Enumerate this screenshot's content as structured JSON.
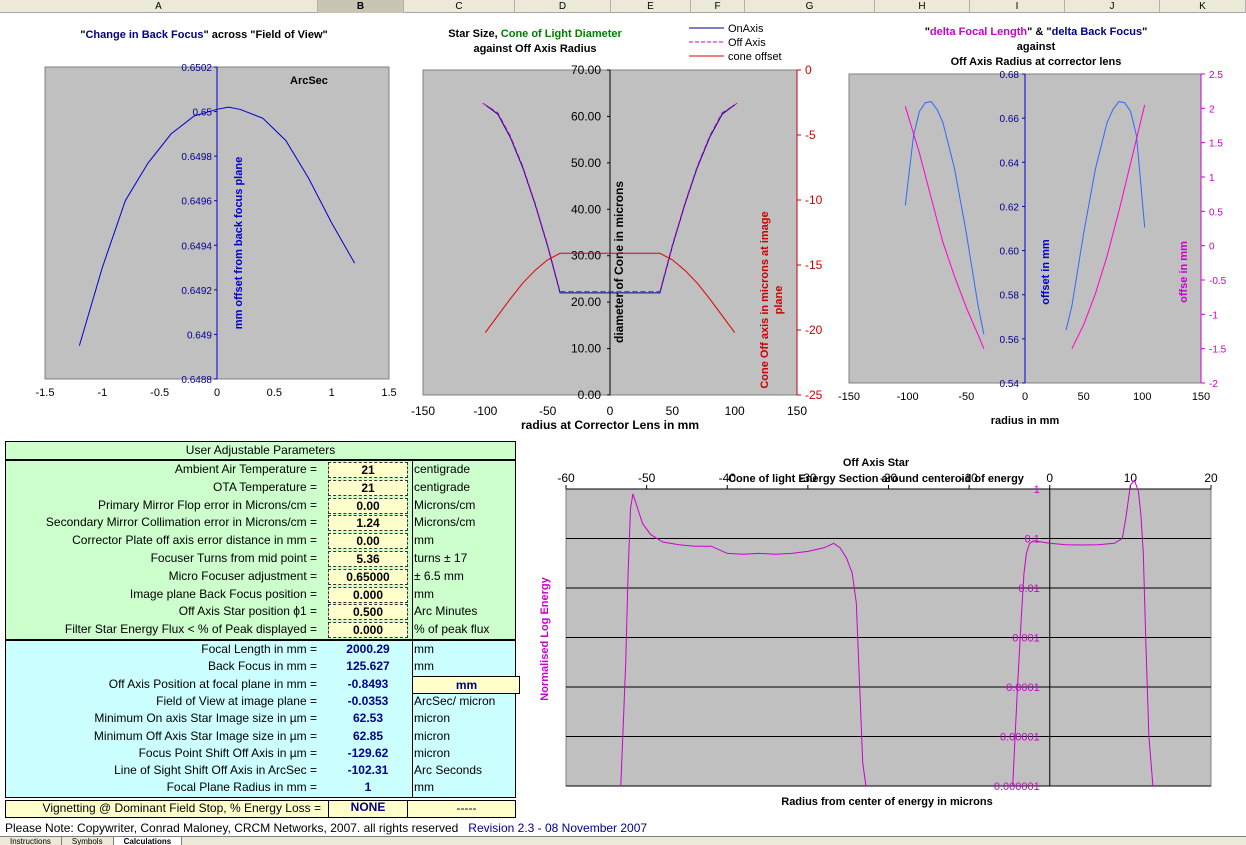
{
  "columns": [
    {
      "label": "A",
      "width": 318
    },
    {
      "label": "B",
      "width": 86
    },
    {
      "label": "C",
      "width": 111
    },
    {
      "label": "D",
      "width": 96
    },
    {
      "label": "E",
      "width": 80
    },
    {
      "label": "F",
      "width": 54
    },
    {
      "label": "G",
      "width": 130
    },
    {
      "label": "H",
      "width": 95
    },
    {
      "label": "I",
      "width": 95
    },
    {
      "label": "J",
      "width": 95
    },
    {
      "label": "K",
      "width": 86
    }
  ],
  "selected_column": "B",
  "chart_data": [
    {
      "type": "line",
      "title_parts": [
        {
          "text": "\"",
          "color": "#000000"
        },
        {
          "text": "Change in Back Focus",
          "color": "#00008b"
        },
        {
          "text": "\" across \"Field  of View\"",
          "color": "#000000"
        }
      ],
      "annotation": "ArcSec",
      "ylabel": "mm offset from back focus plane",
      "xlim": [
        -1.5,
        1.5
      ],
      "ylim": [
        0.6488,
        0.6502
      ],
      "xticks": [
        "-1.5",
        "-1",
        "-0.5",
        "0",
        "0.5",
        "1",
        "1.5"
      ],
      "yticks": [
        "0.6488",
        "0.649",
        "0.6492",
        "0.6494",
        "0.6496",
        "0.6498",
        "0.65",
        "0.6502"
      ],
      "series": [
        {
          "color": "#0000cc",
          "x": [
            -1.2,
            -1.0,
            -0.8,
            -0.6,
            -0.4,
            -0.2,
            0.0,
            0.1,
            0.2,
            0.4,
            0.6,
            0.8,
            1.0,
            1.2
          ],
          "y": [
            0.64895,
            0.6493,
            0.6496,
            0.64977,
            0.6499,
            0.64998,
            0.65001,
            0.65002,
            0.65001,
            0.64997,
            0.64987,
            0.6497,
            0.6495,
            0.64932
          ]
        }
      ]
    },
    {
      "type": "line",
      "title_parts": [
        {
          "text": "Star Size, ",
          "color": "#000000"
        },
        {
          "text": "Cone of Light Diameter",
          "color": "#008000"
        }
      ],
      "subtitle": "against Off Axis Radius",
      "ylabel": "diameter of Cone in microns",
      "y2label": "Cone Off axis in microns at image plane",
      "xlabel": "radius at Corrector Lens in mm",
      "xlim": [
        -150,
        150
      ],
      "ylim": [
        0,
        70
      ],
      "y2lim": [
        -25,
        0
      ],
      "xticks": [
        "-150",
        "-100",
        "-50",
        "0",
        "50",
        "100",
        "150"
      ],
      "yticks": [
        "0.00",
        "10.00",
        "20.00",
        "30.00",
        "40.00",
        "50.00",
        "60.00",
        "70.00"
      ],
      "y2ticks": [
        "-25",
        "-20",
        "-15",
        "-10",
        "-5",
        "0"
      ],
      "legend": [
        "OnAxis",
        "Off Axis",
        "cone offset"
      ],
      "series": [
        {
          "name": "OnAxis",
          "axis": "left",
          "color": "#00008b",
          "dash": "",
          "x": [
            -100,
            -90,
            -80,
            -70,
            -60,
            -50,
            -40,
            -30,
            -20,
            -10,
            0,
            10,
            20,
            30,
            40,
            50,
            60,
            70,
            80,
            90,
            100
          ],
          "y": [
            62.5,
            60.5,
            55.5,
            49,
            41,
            32,
            22,
            22,
            22,
            22,
            22,
            22,
            22,
            22,
            22,
            32,
            41,
            49,
            55.5,
            60.5,
            62.5
          ]
        },
        {
          "name": "Off Axis",
          "axis": "left",
          "color": "#cc00cc",
          "dash": "5,3",
          "x": [
            -102,
            -90,
            -80,
            -70,
            -60,
            -50,
            -40,
            -30,
            -20,
            -10,
            0,
            10,
            20,
            30,
            40,
            50,
            60,
            70,
            80,
            90,
            102
          ],
          "y": [
            62.85,
            60.8,
            55.8,
            49.3,
            41.3,
            32.3,
            22.3,
            22.3,
            22.3,
            22.3,
            22.3,
            22.3,
            22.3,
            22.3,
            22.3,
            32.3,
            41.3,
            49.3,
            55.8,
            60.8,
            62.85
          ]
        },
        {
          "name": "cone offset",
          "axis": "right",
          "color": "#dd0000",
          "dash": "",
          "x": [
            -100,
            -90,
            -80,
            -70,
            -60,
            -50,
            -40,
            -30,
            -20,
            -10,
            0,
            10,
            20,
            30,
            40,
            50,
            60,
            70,
            80,
            90,
            100
          ],
          "y": [
            -20.2,
            -18.9,
            -17.6,
            -16.4,
            -15.4,
            -14.6,
            -14.1,
            -14.1,
            -14.1,
            -14.1,
            -14.1,
            -14.1,
            -14.1,
            -14.1,
            -14.1,
            -14.6,
            -15.4,
            -16.4,
            -17.6,
            -18.9,
            -20.2
          ]
        }
      ]
    },
    {
      "type": "line",
      "title_parts": [
        {
          "text": "\"",
          "color": "#000000"
        },
        {
          "text": "delta Focal Length",
          "color": "#cc00cc"
        },
        {
          "text": "\" & \"",
          "color": "#000000"
        },
        {
          "text": "delta Back Focus",
          "color": "#00008b"
        },
        {
          "text": "\"",
          "color": "#000000"
        }
      ],
      "subtitle": "against",
      "subtitle2": "Off Axis Radius at corrector lens",
      "ylabel": "offset in mm",
      "y2label": "offse in mm",
      "xlabel": "radius in mm",
      "xlim": [
        -150,
        150
      ],
      "ylim": [
        0.54,
        0.68
      ],
      "y2lim": [
        -2,
        2.5
      ],
      "xticks": [
        "-150",
        "-100",
        "-50",
        "0",
        "50",
        "100",
        "150"
      ],
      "yticks": [
        "0.54",
        "0.56",
        "0.58",
        "0.60",
        "0.62",
        "0.64",
        "0.66",
        "0.68"
      ],
      "y2ticks": [
        "-2",
        "-1.5",
        "-1",
        "-0.5",
        "0",
        "0.5",
        "1",
        "1.5",
        "2",
        "2.5"
      ],
      "series": [
        {
          "axis": "left",
          "color": "#3366ff",
          "x": [
            -102,
            -95,
            -90,
            -85,
            -80,
            -75,
            -70,
            -60,
            -50,
            -40,
            -35
          ],
          "y": [
            0.6205,
            0.652,
            0.663,
            0.667,
            0.6675,
            0.664,
            0.658,
            0.637,
            0.608,
            0.575,
            0.562
          ]
        },
        {
          "axis": "left",
          "color": "#3366ff",
          "x": [
            35,
            40,
            50,
            60,
            70,
            75,
            80,
            85,
            90,
            95,
            102
          ],
          "y": [
            0.564,
            0.575,
            0.608,
            0.637,
            0.658,
            0.664,
            0.6675,
            0.667,
            0.663,
            0.652,
            0.6105
          ]
        },
        {
          "axis": "right",
          "color": "#ff00cc",
          "x": [
            -102,
            -90,
            -80,
            -70,
            -60,
            -50,
            -40,
            -35
          ],
          "y": [
            2.03,
            1.35,
            0.7,
            0.05,
            -0.45,
            -0.9,
            -1.3,
            -1.5
          ]
        },
        {
          "axis": "right",
          "color": "#ff00cc",
          "x": [
            40,
            50,
            60,
            70,
            80,
            90,
            102
          ],
          "y": [
            -1.5,
            -1.15,
            -0.7,
            -0.15,
            0.5,
            1.2,
            2.05
          ]
        }
      ]
    },
    {
      "type": "line",
      "title": "Off Axis Star",
      "subtitle": "Cone of light Energy Section around centeroid of energy",
      "ylabel": "Normalised Log Energy",
      "xlabel": "Radius from center of energy in microns",
      "xlim": [
        -60,
        20
      ],
      "ylog": true,
      "ylim": [
        1e-06,
        1
      ],
      "xticks": [
        "-60",
        "-50",
        "-40",
        "-30",
        "-20",
        "-10",
        "0",
        "10",
        "20"
      ],
      "yticks": [
        "0.000001",
        "0.00001",
        "0.0001",
        "0.001",
        "0.01",
        "0.1",
        "1"
      ],
      "series": [
        {
          "color": "#cc00cc",
          "x": [
            -53.2,
            -52.6,
            -52.3,
            -52,
            -51.7,
            -51.2,
            -50.5,
            -49.5,
            -48,
            -46,
            -44,
            -42,
            -40,
            -38,
            -36,
            -34,
            -32,
            -30,
            -28,
            -26.8,
            -26,
            -25.2,
            -24.5,
            -24,
            -23.5,
            -23.2,
            -22.8
          ],
          "y": [
            1e-06,
            0.0003,
            0.02,
            0.4,
            0.8,
            0.45,
            0.2,
            0.12,
            0.085,
            0.075,
            0.07,
            0.07,
            0.05,
            0.048,
            0.05,
            0.048,
            0.05,
            0.055,
            0.065,
            0.08,
            0.065,
            0.04,
            0.02,
            0.005,
            5e-05,
            3e-06,
            1e-06
          ]
        },
        {
          "color": "#cc00cc",
          "x": [
            -4.6,
            -4,
            -3.5,
            -3.2,
            -2.9,
            -2.5,
            -2,
            -1,
            0,
            2,
            4,
            6,
            8,
            9,
            9.5,
            10,
            10.5,
            11,
            11.3,
            11.6,
            11.9,
            12.3,
            12.8
          ],
          "y": [
            1e-06,
            0.0001,
            0.003,
            0.02,
            0.05,
            0.08,
            0.09,
            0.085,
            0.08,
            0.075,
            0.074,
            0.075,
            0.08,
            0.1,
            0.3,
            1.2,
            1.5,
            0.9,
            0.3,
            0.05,
            0.001,
            1e-05,
            1e-06
          ]
        }
      ]
    }
  ],
  "params": {
    "header": "User Adjustable  Parameters",
    "inputs": [
      {
        "label": "Ambient Air Temperature =",
        "value": "21",
        "unit": "centigrade"
      },
      {
        "label": "OTA  Temperature =",
        "value": "21",
        "unit": "centigrade"
      },
      {
        "label": "Primary Mirror Flop error in Microns/cm =",
        "value": "0.00",
        "unit": "Microns/cm"
      },
      {
        "label": "Secondary Mirror Collimation error in Microns/cm =",
        "value": "1.24",
        "unit": "Microns/cm"
      },
      {
        "label": "Corrector Plate off axis error distance in mm =",
        "value": "0.00",
        "unit": "mm"
      },
      {
        "label": "Focuser Turns from mid point =",
        "value": "5.36",
        "unit": "turns ± 17"
      },
      {
        "label": "Micro Focuser  adjustment =",
        "value": "0.65000",
        "unit": " ± 6.5 mm"
      },
      {
        "label": "Image plane Back Focus position =",
        "value": "0.000",
        "unit": "mm"
      },
      {
        "label": "Off Axis Star position  ϕ1 =",
        "value": "0.500",
        "unit": "Arc Minutes"
      },
      {
        "label": "Filter Star Energy Flux < % of Peak displayed =",
        "value": "0.000",
        "unit": "% of peak flux"
      }
    ],
    "outputs": [
      {
        "label": "Focal Length in mm =",
        "value": "2000.29",
        "unit": "mm"
      },
      {
        "label": "Back Focus in mm =",
        "value": "125.627",
        "unit": "mm"
      },
      {
        "label": "Off Axis Position at focal plane in mm  =",
        "value": "-0.8493",
        "unit": "mm",
        "unit_box": true
      },
      {
        "label": "Field of View at image plane =",
        "value": "-0.0353",
        "unit": "ArcSec/ micron"
      },
      {
        "label": "Minimum On axis Star Image size in µm =",
        "value": "62.53",
        "unit": "micron"
      },
      {
        "label": "Minimum Off Axis Star Image size in µm =",
        "value": "62.85",
        "unit": "micron"
      },
      {
        "label": "Focus Point Shift Off Axis in µm =",
        "value": "-129.62",
        "unit": "micron"
      },
      {
        "label": "Line of Sight Shift Off Axis in ArcSec =",
        "value": "-102.31",
        "unit": "Arc Seconds"
      },
      {
        "label": "Focal Plane Radius in mm =",
        "value": "1",
        "unit": "mm"
      }
    ],
    "vignetting": {
      "label": "Vignetting @ Dominant Field Stop, % Energy Loss =",
      "value": "NONE",
      "unit": "-----"
    }
  },
  "note": {
    "text": "Please Note:  Copywriter, Conrad Maloney, CRCM Networks, 2007.  all rights reserved",
    "revision": "Revision 2.3 -  08 November 2007"
  },
  "tabs": [
    "Instructions",
    "Symbols",
    "Calculations"
  ],
  "active_tab": "Calculations",
  "colors": {
    "plot_area": "#c0c0c0",
    "input_panel": "#ccffcc",
    "output_panel": "#ccffff",
    "input_cell": "#ffffcc"
  }
}
